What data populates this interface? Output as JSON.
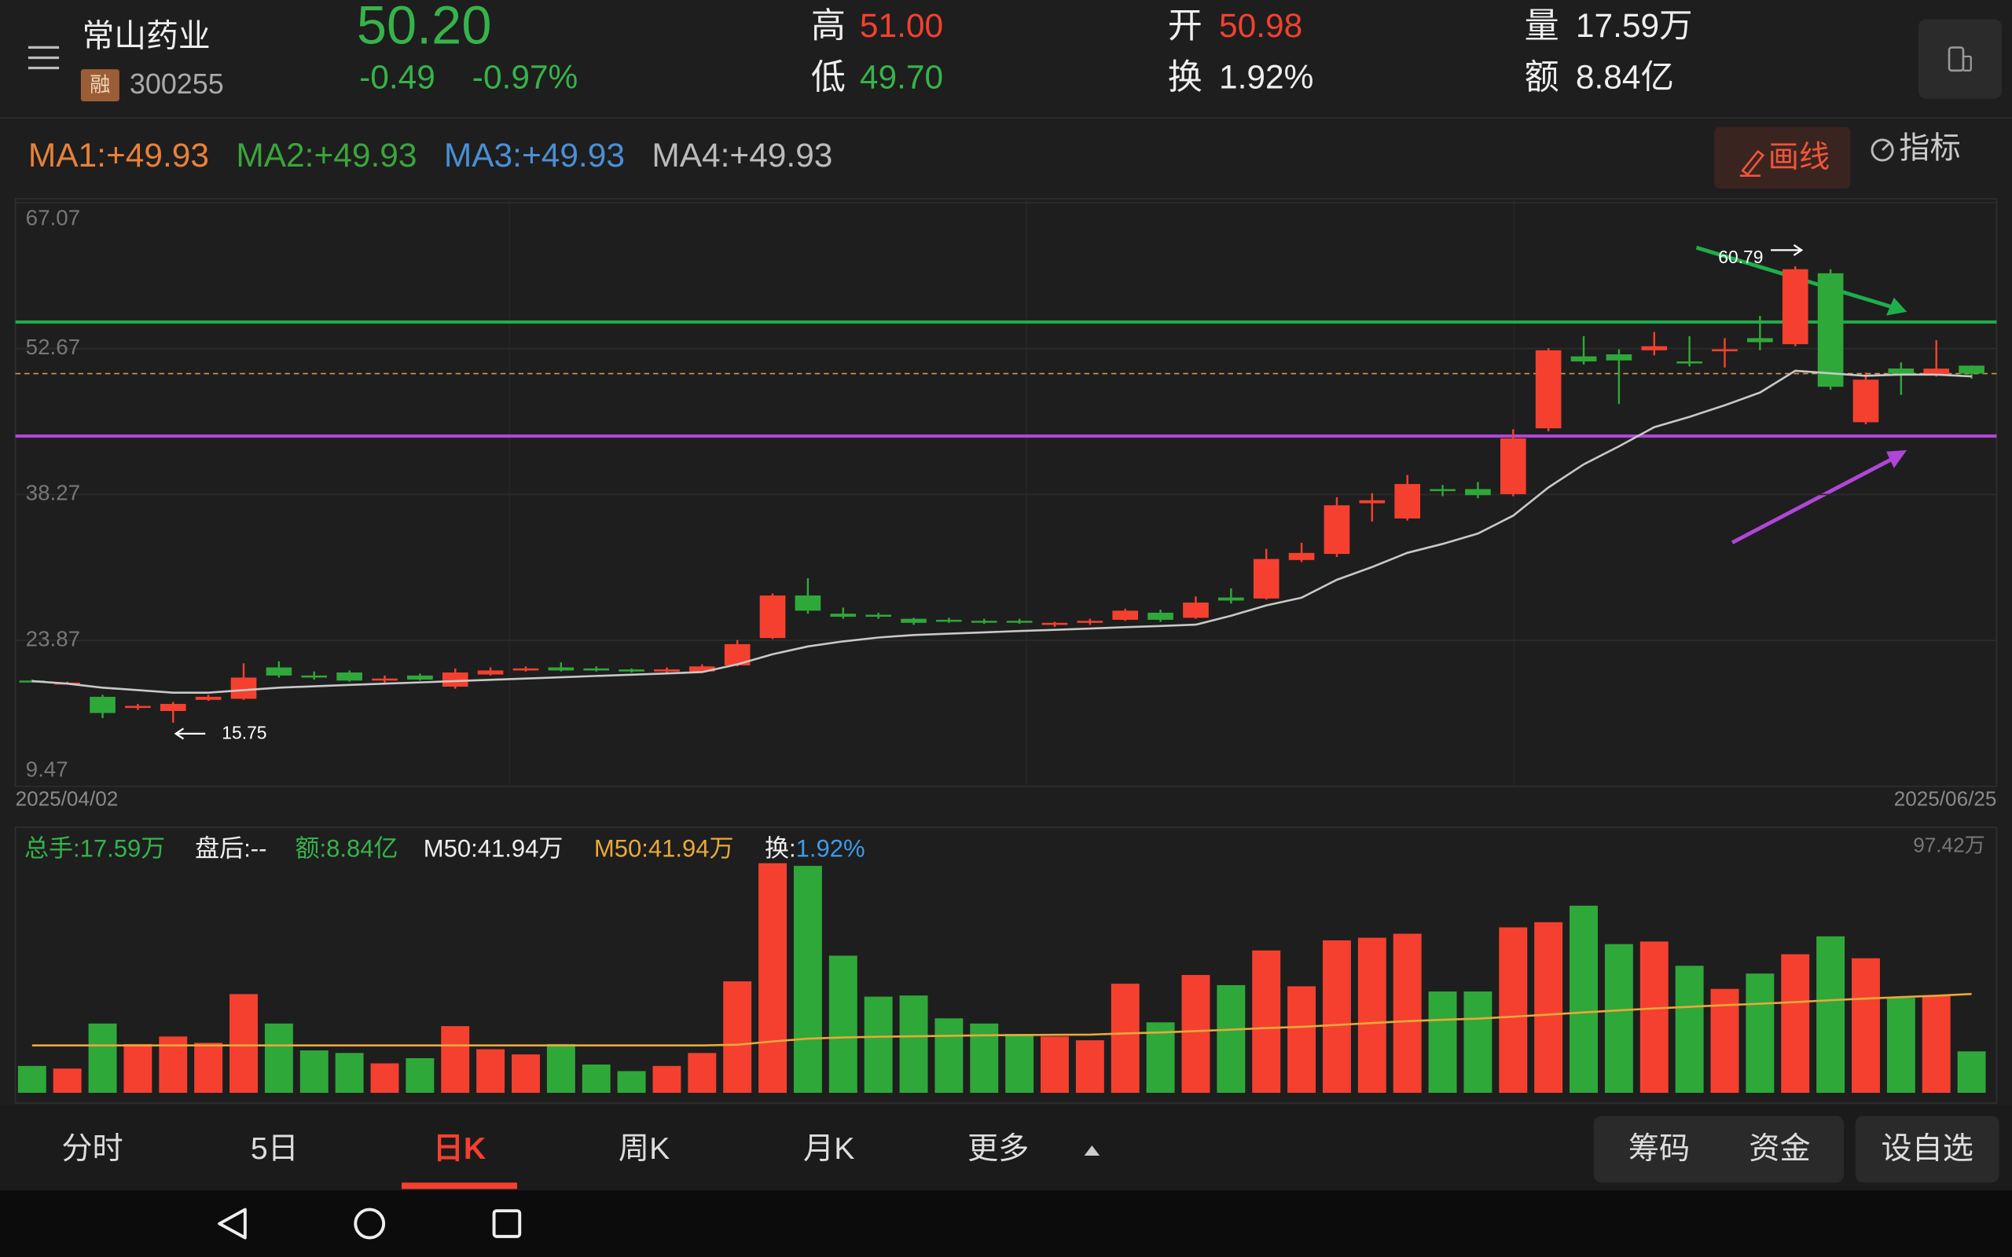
{
  "header": {
    "name": "常山药业",
    "badge": "融",
    "code": "300255",
    "price": "50.20",
    "change": "-0.49",
    "change_pct": "-0.97%",
    "quote": [
      {
        "label": "高",
        "value": "51.00"
      },
      {
        "label": "低",
        "value": "49.70"
      },
      {
        "label": "开",
        "value": "50.98"
      },
      {
        "label": "换",
        "value": "1.92%"
      },
      {
        "label": "量",
        "value": "17.59万"
      },
      {
        "label": "额",
        "value": "8.84亿"
      }
    ]
  },
  "ma_labels": [
    "MA1:+49.93",
    "MA2:+49.93",
    "MA3:+49.93",
    "MA4:+49.93"
  ],
  "toolbar": {
    "draw": "画线",
    "indicator": "指标"
  },
  "tabs": [
    "分时",
    "5日",
    "日K",
    "周K",
    "月K",
    "更多"
  ],
  "right_tabs": [
    "筹码",
    "资金"
  ],
  "watch": "设自选",
  "chart_data": [
    {
      "type": "candlestick",
      "categories": [
        "2025/04/02",
        null,
        null,
        null,
        null,
        null,
        null,
        null,
        null,
        null,
        null,
        null,
        null,
        null,
        null,
        null,
        null,
        null,
        null,
        null,
        null,
        null,
        null,
        null,
        null,
        null,
        null,
        null,
        null,
        null,
        null,
        null,
        null,
        null,
        null,
        null,
        null,
        null,
        null,
        null,
        null,
        null,
        null,
        null,
        null,
        null,
        null,
        null,
        null,
        null,
        null,
        null,
        null,
        null,
        null,
        "2025/06/25"
      ],
      "open": [
        19.9,
        19.6,
        18.3,
        17.2,
        16.9,
        18.0,
        18.1,
        21.2,
        20.4,
        20.7,
        19.9,
        20.4,
        19.3,
        20.5,
        20.9,
        21.2,
        21.1,
        21.0,
        20.8,
        20.8,
        21.4,
        24.1,
        28.3,
        26.5,
        26.4,
        26.0,
        25.9,
        25.8,
        25.8,
        25.4,
        25.6,
        25.9,
        26.6,
        26.1,
        28.1,
        28.0,
        31.8,
        32.4,
        37.4,
        35.9,
        38.8,
        38.8,
        38.3,
        44.8,
        51.9,
        52.1,
        52.5,
        51.4,
        52.4,
        53.7,
        53.1,
        60.1,
        45.4,
        50.7,
        50.0,
        50.98
      ],
      "close": [
        19.8,
        19.7,
        16.7,
        17.4,
        17.6,
        18.3,
        20.2,
        20.4,
        20.2,
        19.9,
        20.1,
        20.0,
        20.7,
        20.9,
        21.1,
        20.9,
        20.9,
        20.8,
        21.0,
        21.3,
        23.5,
        28.3,
        26.8,
        26.2,
        26.2,
        25.6,
        25.8,
        25.7,
        25.7,
        25.6,
        25.8,
        26.8,
        25.9,
        27.6,
        27.8,
        31.9,
        32.5,
        37.2,
        37.7,
        39.3,
        38.6,
        38.2,
        43.8,
        52.5,
        51.4,
        51.5,
        52.9,
        51.2,
        52.6,
        53.3,
        60.5,
        48.9,
        49.6,
        50.2,
        50.69,
        50.2
      ],
      "high": [
        20.0,
        19.8,
        18.5,
        17.6,
        17.8,
        18.5,
        21.6,
        21.8,
        20.8,
        20.9,
        20.4,
        20.6,
        21.1,
        21.2,
        21.3,
        21.7,
        21.3,
        21.1,
        21.2,
        21.5,
        23.9,
        28.5,
        30.0,
        27.1,
        26.6,
        26.1,
        26.1,
        26.0,
        26.0,
        25.7,
        26.0,
        27.0,
        26.9,
        28.2,
        29.0,
        32.9,
        33.5,
        38.0,
        38.4,
        40.2,
        39.2,
        39.5,
        44.7,
        52.7,
        53.9,
        52.6,
        54.3,
        53.9,
        53.7,
        55.9,
        60.79,
        60.5,
        50.3,
        51.3,
        53.5,
        51.0
      ],
      "low": [
        19.7,
        19.5,
        16.2,
        17.0,
        15.75,
        17.9,
        18.0,
        20.2,
        20.0,
        19.8,
        19.7,
        19.9,
        19.1,
        20.4,
        20.8,
        20.8,
        20.8,
        20.7,
        20.7,
        20.7,
        21.3,
        24.0,
        26.5,
        26.0,
        26.0,
        25.4,
        25.6,
        25.5,
        25.5,
        25.2,
        25.4,
        25.8,
        25.7,
        26.0,
        27.5,
        27.9,
        31.6,
        32.1,
        35.6,
        35.7,
        38.1,
        37.9,
        38.1,
        44.5,
        51.1,
        47.2,
        52.0,
        50.9,
        50.8,
        52.5,
        52.9,
        48.6,
        45.2,
        48.1,
        49.9,
        49.7
      ],
      "up_color": "#f5402f",
      "down_color": "#2fa83a",
      "ma_line": {
        "color": "#c8c8c8",
        "values": [
          19.85,
          19.6,
          19.2,
          18.96,
          18.71,
          18.71,
          18.96,
          19.2,
          19.34,
          19.47,
          19.6,
          19.72,
          19.85,
          19.98,
          20.1,
          20.23,
          20.36,
          20.48,
          20.61,
          20.74,
          21.5,
          22.5,
          23.27,
          23.77,
          24.15,
          24.4,
          24.53,
          24.66,
          24.79,
          24.91,
          25.04,
          25.17,
          25.29,
          25.42,
          26.3,
          27.32,
          28.08,
          29.85,
          31.11,
          32.51,
          33.39,
          34.41,
          36.18,
          38.96,
          41.24,
          43.02,
          44.91,
          45.93,
          47.07,
          48.33,
          50.48,
          50.23,
          49.98,
          50.1,
          50.1,
          49.93
        ]
      },
      "lines": [
        {
          "value": 55.29,
          "color": "#1fae4b"
        },
        {
          "value": 44.03,
          "color": "#b046d8"
        }
      ],
      "ylim": [
        9.47,
        67.07
      ],
      "yticks": [
        67.07,
        52.67,
        38.27,
        23.87,
        9.47
      ],
      "grid": true
    },
    {
      "type": "bar",
      "values": [
        11.4,
        10.3,
        29.4,
        20.7,
        23.9,
        21.2,
        41.9,
        29.4,
        18.0,
        16.9,
        12.5,
        14.7,
        28.3,
        18.5,
        16.3,
        20.7,
        12.0,
        9.2,
        11.4,
        16.9,
        47.3,
        97.42,
        96.3,
        58.2,
        40.8,
        41.3,
        31.6,
        29.4,
        25.0,
        23.9,
        22.3,
        46.3,
        29.9,
        50.0,
        45.7,
        60.4,
        45.2,
        64.7,
        65.8,
        67.5,
        43.0,
        43.0,
        70.2,
        72.4,
        79.4,
        63.1,
        64.2,
        53.9,
        44.1,
        50.6,
        58.8,
        66.4,
        57.1,
        40.3,
        41.3,
        17.59
      ],
      "ma_line": {
        "color": "#e8a93a",
        "values": [
          20.1,
          20.1,
          20.1,
          20.1,
          20.1,
          20.1,
          20.1,
          20.1,
          20.1,
          20.1,
          20.1,
          20.1,
          20.1,
          20.1,
          20.1,
          20.1,
          20.1,
          20.1,
          20.1,
          20.1,
          20.4,
          21.8,
          23,
          23.5,
          23.8,
          24,
          24.2,
          24.4,
          24.5,
          24.6,
          24.7,
          25.2,
          25.6,
          26.2,
          26.8,
          27.5,
          28,
          28.8,
          29.6,
          30.4,
          31,
          31.5,
          32.3,
          33.2,
          34.1,
          35,
          35.8,
          36.5,
          37.2,
          37.8,
          38.5,
          39.3,
          40,
          40.6,
          41.2,
          41.94
        ]
      },
      "stats": [
        {
          "label": "总手:",
          "value": "17.59万"
        },
        {
          "label": "盘后:",
          "value": "--"
        },
        {
          "label": "额:",
          "value": "8.84亿"
        },
        {
          "label": "M50:",
          "value": "41.94万"
        },
        {
          "label": "M50:",
          "value": "41.94万"
        },
        {
          "label": "换:",
          "value": "1.92%"
        }
      ],
      "ylim": [
        0,
        97.42
      ],
      "yticks": [
        {
          "value": 97.42,
          "label": "97.42万"
        }
      ],
      "grid": false
    }
  ]
}
